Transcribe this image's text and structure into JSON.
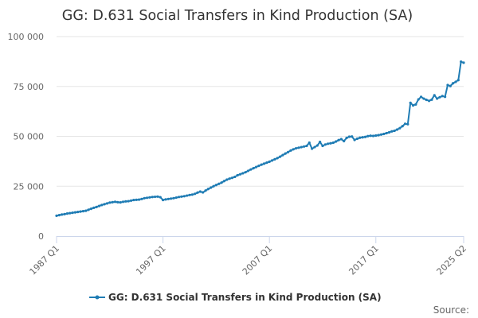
{
  "chart_data": {
    "type": "line",
    "title": "GG: D.631 Social Transfers in Kind Production (SA)",
    "xlabel": "",
    "ylabel": "",
    "ylim": [
      0,
      100000
    ],
    "yticks": [
      0,
      25000,
      50000,
      75000,
      100000
    ],
    "ytick_labels": [
      "0",
      "25 000",
      "50 000",
      "75 000",
      "100 000"
    ],
    "xticks": [
      "1987 Q1",
      "1997 Q1",
      "2007 Q1",
      "2017 Q1",
      "2025 Q2"
    ],
    "x_start": "1987 Q1",
    "x_end": "2025 Q2",
    "grid": "horizontal",
    "legend_position": "bottom-center",
    "colors": {
      "series": "#1f7cb4",
      "grid": "#e6e6e6",
      "axis": "#ccd6eb",
      "title": "#333333",
      "tick": "#666666"
    },
    "series": [
      {
        "name": "GG: D.631 Social Transfers in Kind Production (SA)",
        "values_by_year": {
          "1987": [
            10200,
            10500,
            10800,
            11000
          ],
          "1988": [
            11300,
            11500,
            11700,
            11900
          ],
          "1989": [
            12100,
            12300,
            12500,
            12700
          ],
          "1990": [
            13200,
            13700,
            14200,
            14600
          ],
          "1991": [
            15100,
            15600,
            16000,
            16400
          ],
          "1992": [
            16800,
            17000,
            17200,
            17000
          ],
          "1993": [
            16900,
            17200,
            17400,
            17500
          ],
          "1994": [
            17800,
            18100,
            18200,
            18300
          ],
          "1995": [
            18600,
            19000,
            19200,
            19400
          ],
          "1996": [
            19600,
            19700,
            19800,
            19500
          ],
          "1997": [
            18100,
            18400,
            18600,
            18800
          ],
          "1998": [
            19000,
            19300,
            19600,
            19800
          ],
          "1999": [
            20000,
            20300,
            20600,
            20800
          ],
          "2000": [
            21200,
            21800,
            22300,
            21900
          ],
          "2001": [
            22800,
            23600,
            24300,
            25000
          ],
          "2002": [
            25600,
            26200,
            26800,
            27600
          ],
          "2003": [
            28300,
            28800,
            29200,
            29700
          ],
          "2004": [
            30500,
            31000,
            31500,
            32000
          ],
          "2005": [
            32700,
            33400,
            34000,
            34600
          ],
          "2006": [
            35200,
            35800,
            36300,
            36800
          ],
          "2007": [
            37300,
            37900,
            38500,
            39100
          ],
          "2008": [
            39800,
            40600,
            41400,
            42100
          ],
          "2009": [
            42900,
            43500,
            44000,
            44300
          ],
          "2010": [
            44600,
            44900,
            45200,
            46800
          ],
          "2011": [
            43800,
            44600,
            45400,
            47200
          ],
          "2012": [
            45200,
            45900,
            46300,
            46500
          ],
          "2013": [
            46800,
            47400,
            48100,
            48600
          ],
          "2014": [
            47600,
            49200,
            49800,
            49900
          ],
          "2015": [
            48200,
            48800,
            49300,
            49500
          ],
          "2016": [
            49700,
            50100,
            50300,
            50200
          ],
          "2017": [
            50400,
            50600,
            50900,
            51200
          ],
          "2018": [
            51600,
            52000,
            52500,
            52800
          ],
          "2019": [
            53400,
            54100,
            55100,
            56300
          ],
          "2020": [
            56100,
            66800,
            65500,
            66000
          ],
          "2021": [
            68500,
            69800,
            68900,
            68300
          ],
          "2022": [
            67800,
            68400,
            70600,
            68900
          ],
          "2023": [
            69600,
            70200,
            69800,
            75700
          ],
          "2024": [
            75200,
            76600,
            77300,
            78200
          ],
          "2025": [
            87400,
            86900
          ]
        }
      }
    ]
  },
  "credit": "Source:"
}
